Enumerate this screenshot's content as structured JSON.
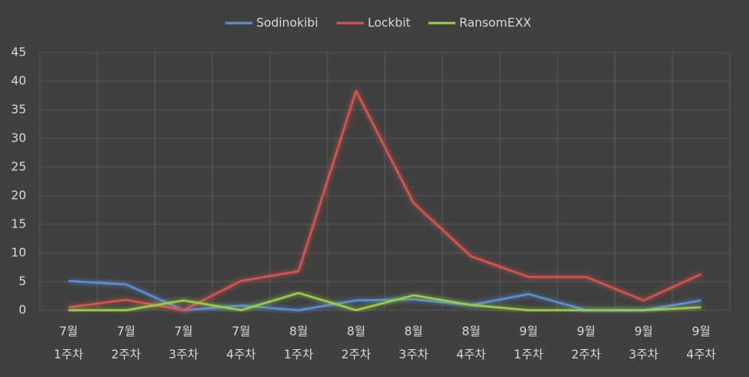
{
  "chart_data": {
    "type": "line",
    "categories": [
      [
        "7월",
        "1주차"
      ],
      [
        "7월",
        "2주차"
      ],
      [
        "7월",
        "3주차"
      ],
      [
        "7월",
        "4주차"
      ],
      [
        "8월",
        "1주차"
      ],
      [
        "8월",
        "2주차"
      ],
      [
        "8월",
        "3주차"
      ],
      [
        "8월",
        "4주차"
      ],
      [
        "9월",
        "1주차"
      ],
      [
        "9월",
        "2주차"
      ],
      [
        "9월",
        "3주차"
      ],
      [
        "9월",
        "4주차"
      ]
    ],
    "series": [
      {
        "name": "Sodinokibi",
        "color": "#5b8fd6",
        "values": [
          5.1,
          4.5,
          0,
          0.8,
          0,
          1.7,
          1.9,
          0.9,
          2.8,
          0,
          0,
          1.7
        ]
      },
      {
        "name": "Lockbit",
        "color": "#d9534f",
        "values": [
          0.5,
          1.8,
          0,
          5.1,
          6.8,
          38.3,
          18.7,
          9.4,
          5.8,
          5.8,
          1.7,
          6.3
        ]
      },
      {
        "name": "RansomEXX",
        "color": "#9acd4a",
        "values": [
          0,
          0,
          1.7,
          0,
          3.0,
          0,
          2.6,
          0.9,
          0,
          0,
          0,
          0.5
        ]
      }
    ],
    "ylim": [
      0,
      45
    ],
    "yticks": [
      0,
      5,
      10,
      15,
      20,
      25,
      30,
      35,
      40,
      45
    ],
    "grid": true,
    "legend": "top"
  }
}
